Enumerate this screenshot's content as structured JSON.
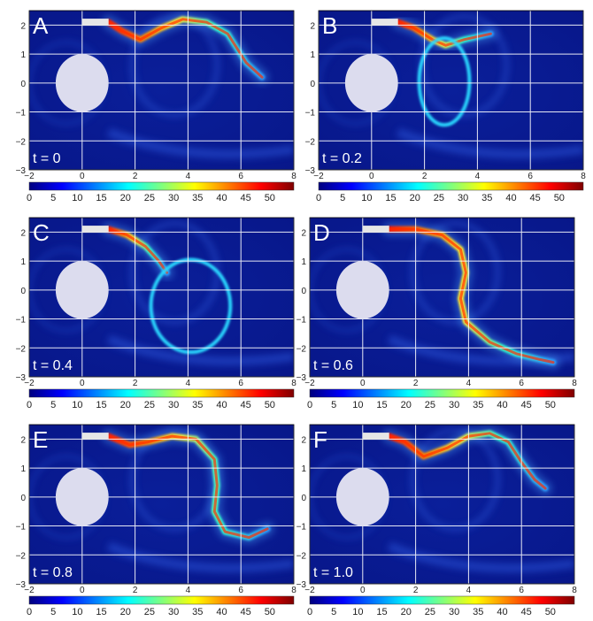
{
  "chart_data": [
    {
      "type": "heatmap",
      "panel": "A",
      "time_label": "t = 0",
      "xlim": [
        -2,
        8
      ],
      "ylim": [
        -3,
        2.5
      ],
      "xticks": [
        "−2",
        "0",
        "2",
        "4",
        "6",
        "8"
      ],
      "yticks": [
        "−3",
        "−2",
        "−1",
        "0",
        "1",
        "2"
      ],
      "grid": true,
      "colorbar_ticks": [
        "0",
        "5",
        "10",
        "15",
        "20",
        "25",
        "30",
        "35",
        "40",
        "45",
        "50"
      ],
      "colorbar_range": [
        0,
        55
      ],
      "cylinder": {
        "center": [
          0,
          0
        ],
        "radius": 1
      },
      "injector": {
        "x": [
          0,
          1
        ],
        "y": 2.1
      },
      "streak": [
        [
          1.0,
          2.1
        ],
        [
          1.5,
          1.8
        ],
        [
          2.2,
          1.5
        ],
        [
          3.0,
          1.9
        ],
        [
          3.8,
          2.2
        ],
        [
          4.7,
          2.1
        ],
        [
          5.5,
          1.7
        ],
        [
          6.2,
          0.7
        ],
        [
          6.8,
          0.2
        ]
      ],
      "loops": []
    },
    {
      "type": "heatmap",
      "panel": "B",
      "time_label": "t = 0.2",
      "xlim": [
        -2,
        8
      ],
      "ylim": [
        -3,
        2.5
      ],
      "xticks": [
        "−2",
        "0",
        "2",
        "4",
        "6",
        "8"
      ],
      "yticks": [
        "−3",
        "−2",
        "−1",
        "0",
        "1",
        "2"
      ],
      "grid": true,
      "colorbar_ticks": [
        "0",
        "5",
        "10",
        "15",
        "20",
        "25",
        "30",
        "35",
        "40",
        "45",
        "50"
      ],
      "colorbar_range": [
        0,
        55
      ],
      "cylinder": {
        "center": [
          0,
          0
        ],
        "radius": 1
      },
      "injector": {
        "x": [
          0,
          1
        ],
        "y": 2.1
      },
      "streak": [
        [
          1.0,
          2.1
        ],
        [
          1.6,
          1.9
        ],
        [
          2.3,
          1.5
        ],
        [
          2.8,
          1.3
        ],
        [
          3.5,
          1.5
        ],
        [
          4.5,
          1.7
        ]
      ],
      "loops": [
        {
          "cx": 2.75,
          "cy": 0.05,
          "rx": 0.95,
          "ry": 1.5
        }
      ]
    },
    {
      "type": "heatmap",
      "panel": "C",
      "time_label": "t = 0.4",
      "xlim": [
        -2,
        8
      ],
      "ylim": [
        -3,
        2.5
      ],
      "xticks": [
        "−2",
        "0",
        "2",
        "4",
        "6",
        "8"
      ],
      "yticks": [
        "−3",
        "−2",
        "−1",
        "0",
        "1",
        "2"
      ],
      "grid": true,
      "colorbar_ticks": [
        "0",
        "5",
        "10",
        "15",
        "20",
        "25",
        "30",
        "35",
        "40",
        "45",
        "50"
      ],
      "colorbar_range": [
        0,
        55
      ],
      "cylinder": {
        "center": [
          0,
          0
        ],
        "radius": 1
      },
      "injector": {
        "x": [
          0,
          1
        ],
        "y": 2.1
      },
      "streak": [
        [
          1.0,
          2.1
        ],
        [
          1.7,
          1.9
        ],
        [
          2.4,
          1.5
        ],
        [
          2.9,
          1.0
        ],
        [
          3.2,
          0.6
        ]
      ],
      "loops": [
        {
          "cx": 4.1,
          "cy": -0.55,
          "rx": 1.5,
          "ry": 1.6
        }
      ]
    },
    {
      "type": "heatmap",
      "panel": "D",
      "time_label": "t = 0.6",
      "xlim": [
        -2,
        8
      ],
      "ylim": [
        -3,
        2.5
      ],
      "xticks": [
        "−2",
        "0",
        "2",
        "4",
        "6",
        "8"
      ],
      "yticks": [
        "−3",
        "−2",
        "−1",
        "0",
        "1",
        "2"
      ],
      "grid": true,
      "colorbar_ticks": [
        "0",
        "5",
        "10",
        "15",
        "20",
        "25",
        "30",
        "35",
        "40",
        "45",
        "50"
      ],
      "colorbar_range": [
        0,
        55
      ],
      "cylinder": {
        "center": [
          0,
          0
        ],
        "radius": 1
      },
      "injector": {
        "x": [
          0,
          1
        ],
        "y": 2.1
      },
      "streak": [
        [
          1.0,
          2.1
        ],
        [
          2.0,
          2.1
        ],
        [
          3.0,
          1.9
        ],
        [
          3.7,
          1.4
        ],
        [
          3.9,
          0.6
        ],
        [
          3.7,
          -0.3
        ],
        [
          3.9,
          -1.1
        ],
        [
          4.8,
          -1.8
        ],
        [
          5.8,
          -2.2
        ],
        [
          6.7,
          -2.4
        ],
        [
          7.2,
          -2.5
        ]
      ],
      "loops": []
    },
    {
      "type": "heatmap",
      "panel": "E",
      "time_label": "t = 0.8",
      "xlim": [
        -2,
        8
      ],
      "ylim": [
        -3,
        2.5
      ],
      "xticks": [
        "−2",
        "0",
        "2",
        "4",
        "6",
        "8"
      ],
      "yticks": [
        "−3",
        "−2",
        "−1",
        "0",
        "1",
        "2"
      ],
      "grid": true,
      "colorbar_ticks": [
        "0",
        "5",
        "10",
        "15",
        "20",
        "25",
        "30",
        "35",
        "40",
        "45",
        "50"
      ],
      "colorbar_range": [
        0,
        55
      ],
      "cylinder": {
        "center": [
          0,
          0
        ],
        "radius": 1
      },
      "injector": {
        "x": [
          0,
          1
        ],
        "y": 2.1
      },
      "streak": [
        [
          1.0,
          2.1
        ],
        [
          1.8,
          1.8
        ],
        [
          2.5,
          1.9
        ],
        [
          3.4,
          2.1
        ],
        [
          4.3,
          2.0
        ],
        [
          5.0,
          1.3
        ],
        [
          5.1,
          0.4
        ],
        [
          5.0,
          -0.5
        ],
        [
          5.4,
          -1.2
        ],
        [
          6.3,
          -1.4
        ],
        [
          7.0,
          -1.1
        ]
      ],
      "loops": []
    },
    {
      "type": "heatmap",
      "panel": "F",
      "time_label": "t = 1.0",
      "xlim": [
        -2,
        8
      ],
      "ylim": [
        -3,
        2.5
      ],
      "xticks": [
        "−2",
        "0",
        "2",
        "4",
        "6",
        "8"
      ],
      "yticks": [
        "−3",
        "−2",
        "−1",
        "0",
        "1",
        "2"
      ],
      "grid": true,
      "colorbar_ticks": [
        "0",
        "5",
        "10",
        "15",
        "20",
        "25",
        "30",
        "35",
        "40",
        "45",
        "50"
      ],
      "colorbar_range": [
        0,
        55
      ],
      "cylinder": {
        "center": [
          0,
          0
        ],
        "radius": 1
      },
      "injector": {
        "x": [
          0,
          1
        ],
        "y": 2.1
      },
      "streak": [
        [
          1.0,
          2.1
        ],
        [
          1.6,
          1.9
        ],
        [
          2.3,
          1.4
        ],
        [
          3.2,
          1.7
        ],
        [
          4.0,
          2.1
        ],
        [
          4.8,
          2.2
        ],
        [
          5.5,
          1.9
        ],
        [
          6.0,
          1.2
        ],
        [
          6.5,
          0.6
        ],
        [
          6.9,
          0.3
        ]
      ],
      "loops": []
    }
  ],
  "colors": {
    "background": "#0a1a8c",
    "grid": "#ffffff",
    "cylinder": "#dcdcee",
    "injector": "#e6e6e6",
    "panel_letter": "#ffffff",
    "time_label": "#ffffff",
    "colormap": [
      "#00007f",
      "#0000ff",
      "#007fff",
      "#00ffff",
      "#7fff7f",
      "#ffff00",
      "#ff7f00",
      "#ff0000",
      "#7f0000"
    ]
  }
}
